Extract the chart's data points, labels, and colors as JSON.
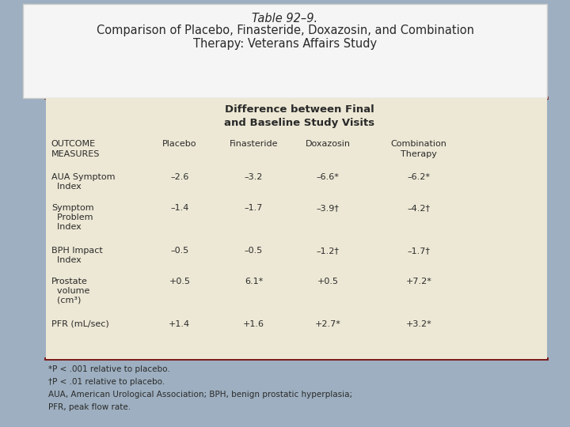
{
  "title_line1": "Table 92–9.",
  "title_line2": "Comparison of Placebo, Finasteride, Doxazosin, and Combination",
  "title_line3": "Therapy: Veterans Affairs Study",
  "bg_outer": "#9dafc0",
  "bg_title": "#f5f5f5",
  "bg_table": "#ede8d5",
  "border_color": "#7a1a1a",
  "header_span": "Difference between Final\nand Baseline Study Visits",
  "rows": [
    {
      "outcome": [
        "AUA Symptom",
        "  Index"
      ],
      "placebo": "–2.6",
      "finasteride": "–3.2",
      "doxazosin": "–6.6*",
      "combination": "–6.2*"
    },
    {
      "outcome": [
        "Symptom",
        "  Problem",
        "  Index"
      ],
      "placebo": "–1.4",
      "finasteride": "–1.7",
      "doxazosin": "–3.9†",
      "combination": "–4.2†"
    },
    {
      "outcome": [
        "BPH Impact",
        "  Index"
      ],
      "placebo": "–0.5",
      "finasteride": "–0.5",
      "doxazosin": "–1.2†",
      "combination": "–1.7†"
    },
    {
      "outcome": [
        "Prostate",
        "  volume",
        "  (cm³)"
      ],
      "placebo": "+0.5",
      "finasteride": "6.1*",
      "doxazosin": "+0.5",
      "combination": "+7.2*"
    },
    {
      "outcome": [
        "PFR (mL/sec)"
      ],
      "placebo": "+1.4",
      "finasteride": "+1.6",
      "doxazosin": "+2.7*",
      "combination": "+3.2*"
    }
  ],
  "footnotes": [
    "*P < .001 relative to placebo.",
    "†P < .01 relative to placebo.",
    "AUA, American Urological Association; BPH, benign prostatic hyperplasia;",
    "PFR, peak flow rate."
  ],
  "text_color": "#2a2a2a",
  "footnote_color": "#2a2a2a"
}
